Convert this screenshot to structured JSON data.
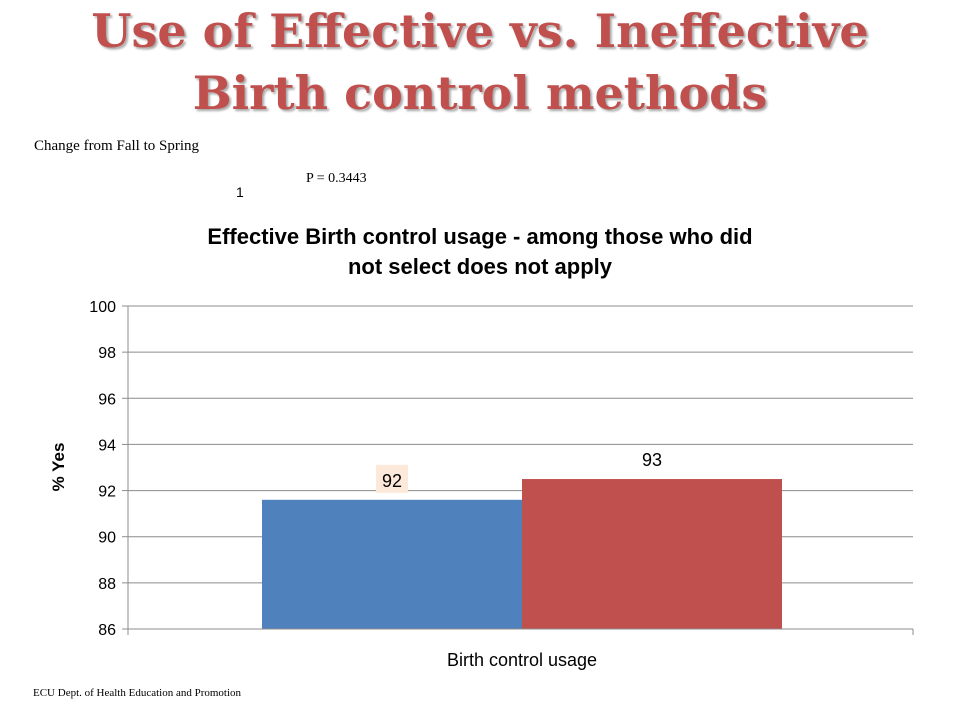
{
  "slide": {
    "title_line1": "Use of Effective vs. Ineffective",
    "title_line2": "Birth control methods",
    "subtitle": "Change  from Fall to Spring",
    "p_value": "P = 0.3443",
    "marker": "1",
    "footer": "ECU Dept. of Health Education and Promotion"
  },
  "chart_data": {
    "type": "bar",
    "title_line1": "Effective Birth control usage - among those who did",
    "title_line2": "not select does not apply",
    "categories": [
      "Birth control usage"
    ],
    "series": [
      {
        "values": [
          91.6
        ],
        "label": "92",
        "color": "#4f81bd"
      },
      {
        "values": [
          92.5
        ],
        "label": "93",
        "color": "#c0504d"
      }
    ],
    "xlabel": "Birth control usage",
    "ylabel": "% Yes",
    "ylim": [
      86,
      100
    ],
    "yticks": [
      "86",
      "88",
      "90",
      "92",
      "94",
      "96",
      "98",
      "100"
    ],
    "grid": true,
    "legend": "none",
    "data_label_background": "#fde9d9"
  }
}
